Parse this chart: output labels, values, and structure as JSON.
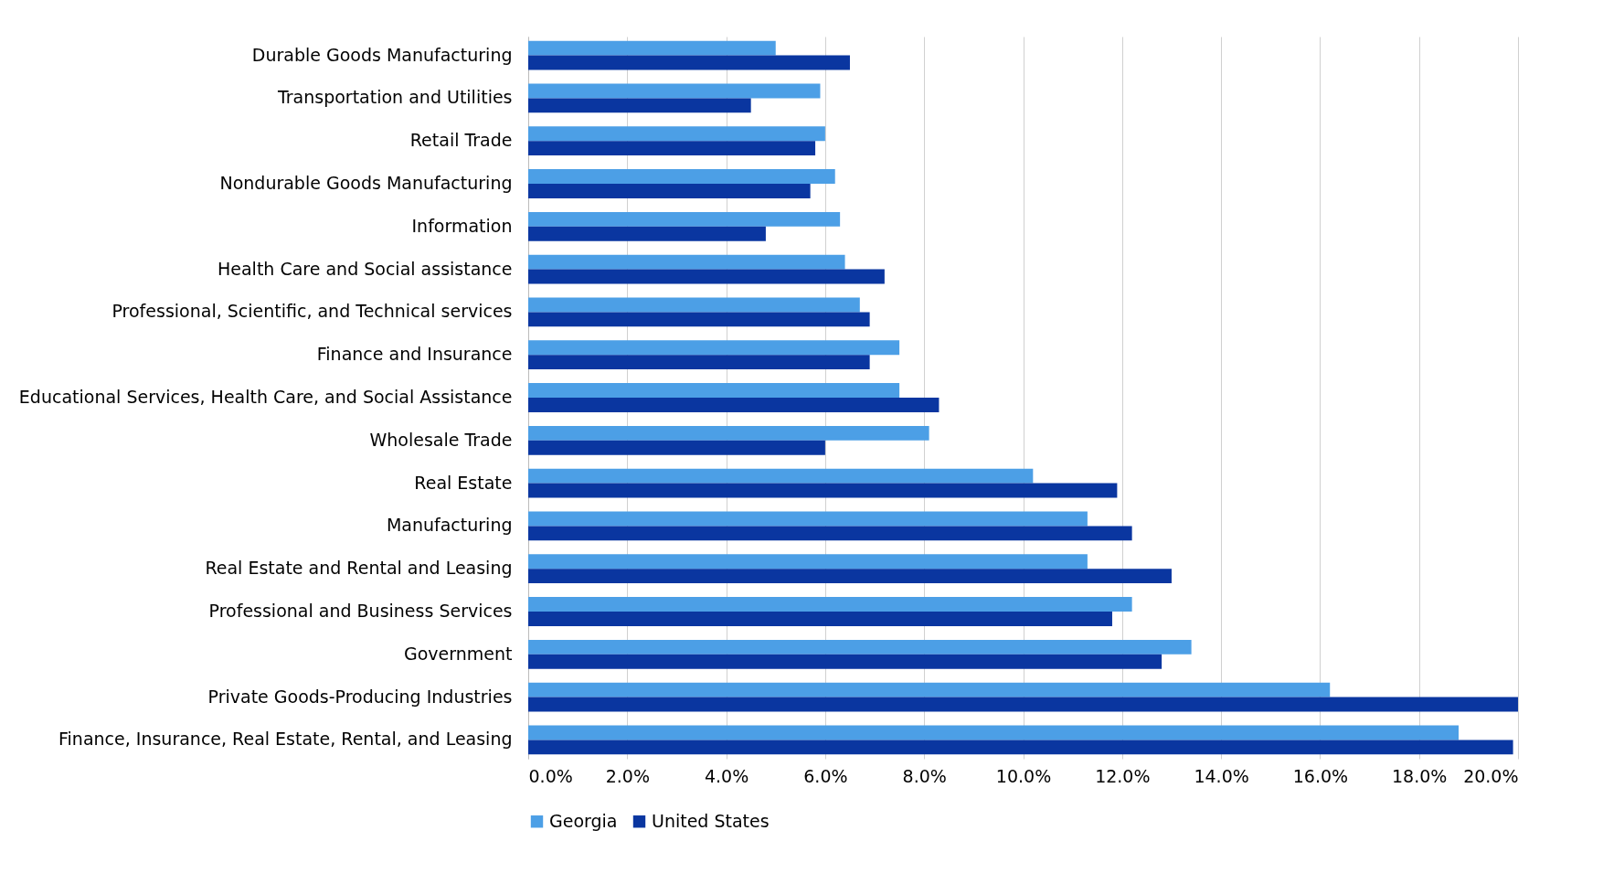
{
  "chart_data": {
    "type": "bar",
    "orientation": "horizontal",
    "categories": [
      "Durable Goods Manufacturing",
      "Transportation and Utilities",
      "Retail Trade",
      "Nondurable Goods Manufacturing",
      "Information",
      "Health Care and Social assistance",
      "Professional, Scientific, and Technical services",
      "Finance and Insurance",
      "Educational Services, Health Care, and Social Assistance",
      "Wholesale Trade",
      "Real Estate",
      "Manufacturing",
      "Real Estate and Rental and Leasing",
      "Professional and Business Services",
      "Government",
      "Private Goods-Producing Industries",
      "Finance, Insurance, Real Estate, Rental, and Leasing"
    ],
    "series": [
      {
        "name": "Georgia",
        "color": "#4c9fe6",
        "values": [
          5.0,
          5.9,
          6.0,
          6.2,
          6.3,
          6.4,
          6.7,
          7.5,
          7.5,
          8.1,
          10.2,
          11.3,
          11.3,
          12.2,
          13.4,
          16.2,
          18.8
        ]
      },
      {
        "name": "United States",
        "color": "#0a36a0",
        "values": [
          6.5,
          4.5,
          5.8,
          5.7,
          4.8,
          7.2,
          6.9,
          6.9,
          8.3,
          6.0,
          11.9,
          12.2,
          13.0,
          11.8,
          12.8,
          20.0,
          19.9
        ]
      }
    ],
    "xlim": [
      0,
      20
    ],
    "xticks": [
      {
        "value": 0,
        "label": "0.0%"
      },
      {
        "value": 2,
        "label": "2.0%"
      },
      {
        "value": 4,
        "label": "4.0%"
      },
      {
        "value": 6,
        "label": "6.0%"
      },
      {
        "value": 8,
        "label": "8.0%"
      },
      {
        "value": 10,
        "label": "10.0%"
      },
      {
        "value": 12,
        "label": "12.0%"
      },
      {
        "value": 14,
        "label": "14.0%"
      },
      {
        "value": 16,
        "label": "16.0%"
      },
      {
        "value": 18,
        "label": "18.0%"
      },
      {
        "value": 20,
        "label": "20.0%"
      }
    ],
    "grid": "x",
    "legend": "bottom"
  }
}
